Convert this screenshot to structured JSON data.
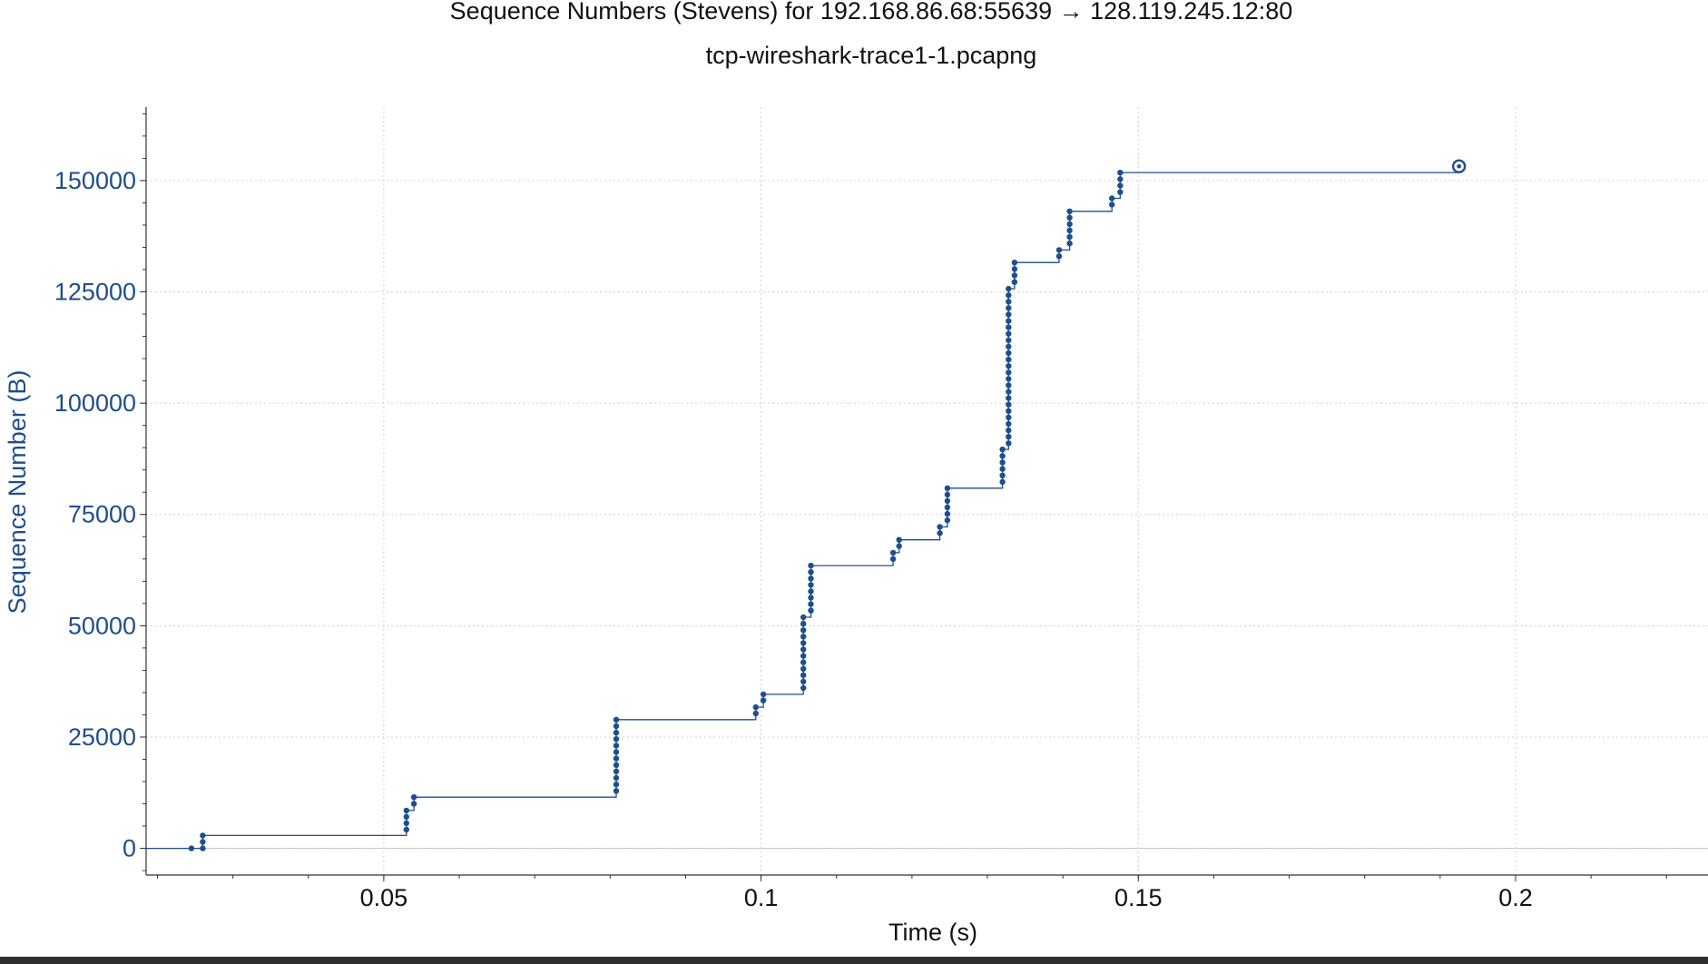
{
  "chart_data": {
    "type": "scatter",
    "title": "Sequence Numbers (Stevens) for 192.168.86.68:55639 → 128.119.245.12:80",
    "subtitle": "tcp-wireshark-trace1-1.pcapng",
    "xlabel": "Time (s)",
    "ylabel": "Sequence Number (B)",
    "xlim": [
      0.0185,
      0.2255
    ],
    "ylim": [
      -6000,
      166500
    ],
    "x_ticks": [
      0.05,
      0.1,
      0.15,
      0.2
    ],
    "x_tick_labels": [
      "0.05",
      "0.1",
      "0.15",
      "0.2"
    ],
    "y_ticks": [
      0,
      25000,
      50000,
      75000,
      100000,
      125000,
      150000
    ],
    "y_tick_labels": [
      "0",
      "25000",
      "50000",
      "75000",
      "100000",
      "125000",
      "150000"
    ],
    "grid": true,
    "series": [
      {
        "color": "#1f4e8c",
        "groups": [
          {
            "t": 0.0245,
            "from": 0,
            "to": 0
          },
          {
            "t": 0.026,
            "from": 0,
            "to": 2900
          },
          {
            "t": 0.053,
            "from": 4200,
            "to": 8500
          },
          {
            "t": 0.054,
            "from": 10000,
            "to": 11500
          },
          {
            "t": 0.0808,
            "from": 12900,
            "to": 28900
          },
          {
            "t": 0.0993,
            "from": 30300,
            "to": 31700
          },
          {
            "t": 0.1003,
            "from": 33200,
            "to": 34600
          },
          {
            "t": 0.1056,
            "from": 36000,
            "to": 51900
          },
          {
            "t": 0.1066,
            "from": 53400,
            "to": 63500
          },
          {
            "t": 0.1175,
            "from": 65000,
            "to": 66400
          },
          {
            "t": 0.1183,
            "from": 67900,
            "to": 69300
          },
          {
            "t": 0.1237,
            "from": 70800,
            "to": 72200
          },
          {
            "t": 0.1247,
            "from": 73700,
            "to": 80900
          },
          {
            "t": 0.132,
            "from": 82300,
            "to": 89600
          },
          {
            "t": 0.1328,
            "from": 91000,
            "to": 125700
          },
          {
            "t": 0.1336,
            "from": 127200,
            "to": 131600
          },
          {
            "t": 0.1395,
            "from": 133000,
            "to": 134400
          },
          {
            "t": 0.1409,
            "from": 135900,
            "to": 143100
          },
          {
            "t": 0.1465,
            "from": 144600,
            "to": 146000
          },
          {
            "t": 0.1476,
            "from": 147400,
            "to": 151800
          }
        ],
        "step_line": [
          [
            0.0185,
            0
          ],
          [
            0.0245,
            0
          ],
          [
            0.0245,
            0
          ],
          [
            0.026,
            0
          ],
          [
            0.026,
            2900
          ],
          [
            0.053,
            2900
          ],
          [
            0.053,
            8500
          ],
          [
            0.054,
            8500
          ],
          [
            0.054,
            11500
          ],
          [
            0.0808,
            11500
          ],
          [
            0.0808,
            28900
          ],
          [
            0.0993,
            28900
          ],
          [
            0.0993,
            31700
          ],
          [
            0.1003,
            31700
          ],
          [
            0.1003,
            34600
          ],
          [
            0.1056,
            34600
          ],
          [
            0.1056,
            51900
          ],
          [
            0.1066,
            51900
          ],
          [
            0.1066,
            63500
          ],
          [
            0.1175,
            63500
          ],
          [
            0.1175,
            66400
          ],
          [
            0.1183,
            66400
          ],
          [
            0.1183,
            69300
          ],
          [
            0.1237,
            69300
          ],
          [
            0.1237,
            72200
          ],
          [
            0.1247,
            72200
          ],
          [
            0.1247,
            80900
          ],
          [
            0.132,
            80900
          ],
          [
            0.132,
            89600
          ],
          [
            0.1328,
            89600
          ],
          [
            0.1328,
            125700
          ],
          [
            0.1336,
            125700
          ],
          [
            0.1336,
            131600
          ],
          [
            0.1395,
            131600
          ],
          [
            0.1395,
            134400
          ],
          [
            0.1409,
            134400
          ],
          [
            0.1409,
            143100
          ],
          [
            0.1465,
            143100
          ],
          [
            0.1465,
            146000
          ],
          [
            0.1476,
            146000
          ],
          [
            0.1476,
            151800
          ],
          [
            0.1925,
            151800
          ]
        ],
        "marker_step": 1448,
        "end_point": [
          0.1925,
          153200
        ]
      }
    ]
  }
}
